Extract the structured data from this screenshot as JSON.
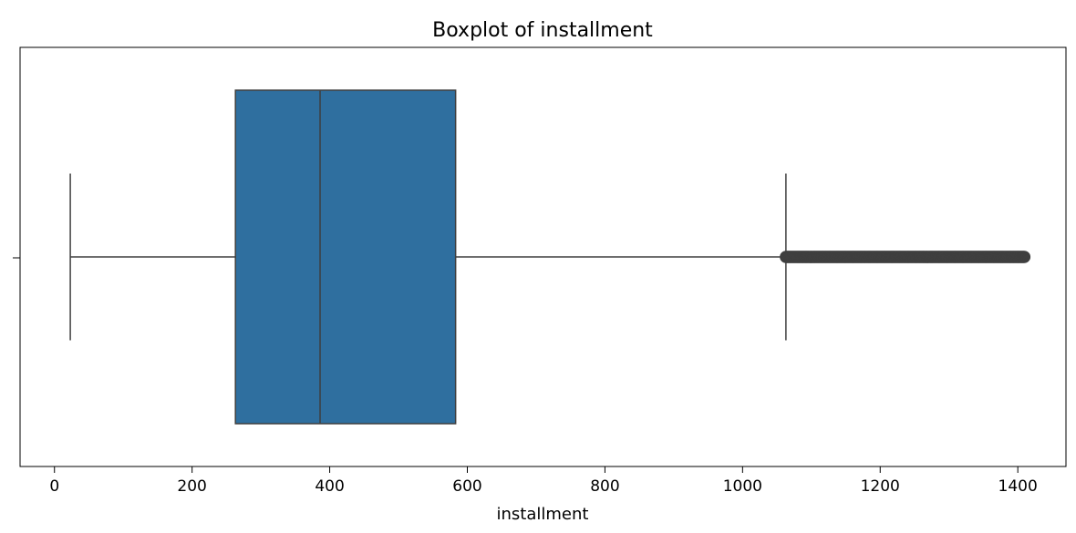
{
  "chart_data": {
    "type": "boxplot",
    "title": "Boxplot of installment",
    "xlabel": "installment",
    "ylabel": "",
    "xlim": [
      -50,
      1470
    ],
    "xticks": [
      0,
      200,
      400,
      600,
      800,
      1000,
      1200,
      1400
    ],
    "grid": false,
    "orientation": "horizontal",
    "box": {
      "whisker_low": 23,
      "q1": 263,
      "median": 386,
      "q3": 583,
      "whisker_high": 1063
    },
    "outliers_range": [
      1063,
      1410
    ],
    "colors": {
      "box_fill": "#2f6f9f",
      "line": "#3f3f3f",
      "outlier": "#3f3f3f"
    }
  }
}
